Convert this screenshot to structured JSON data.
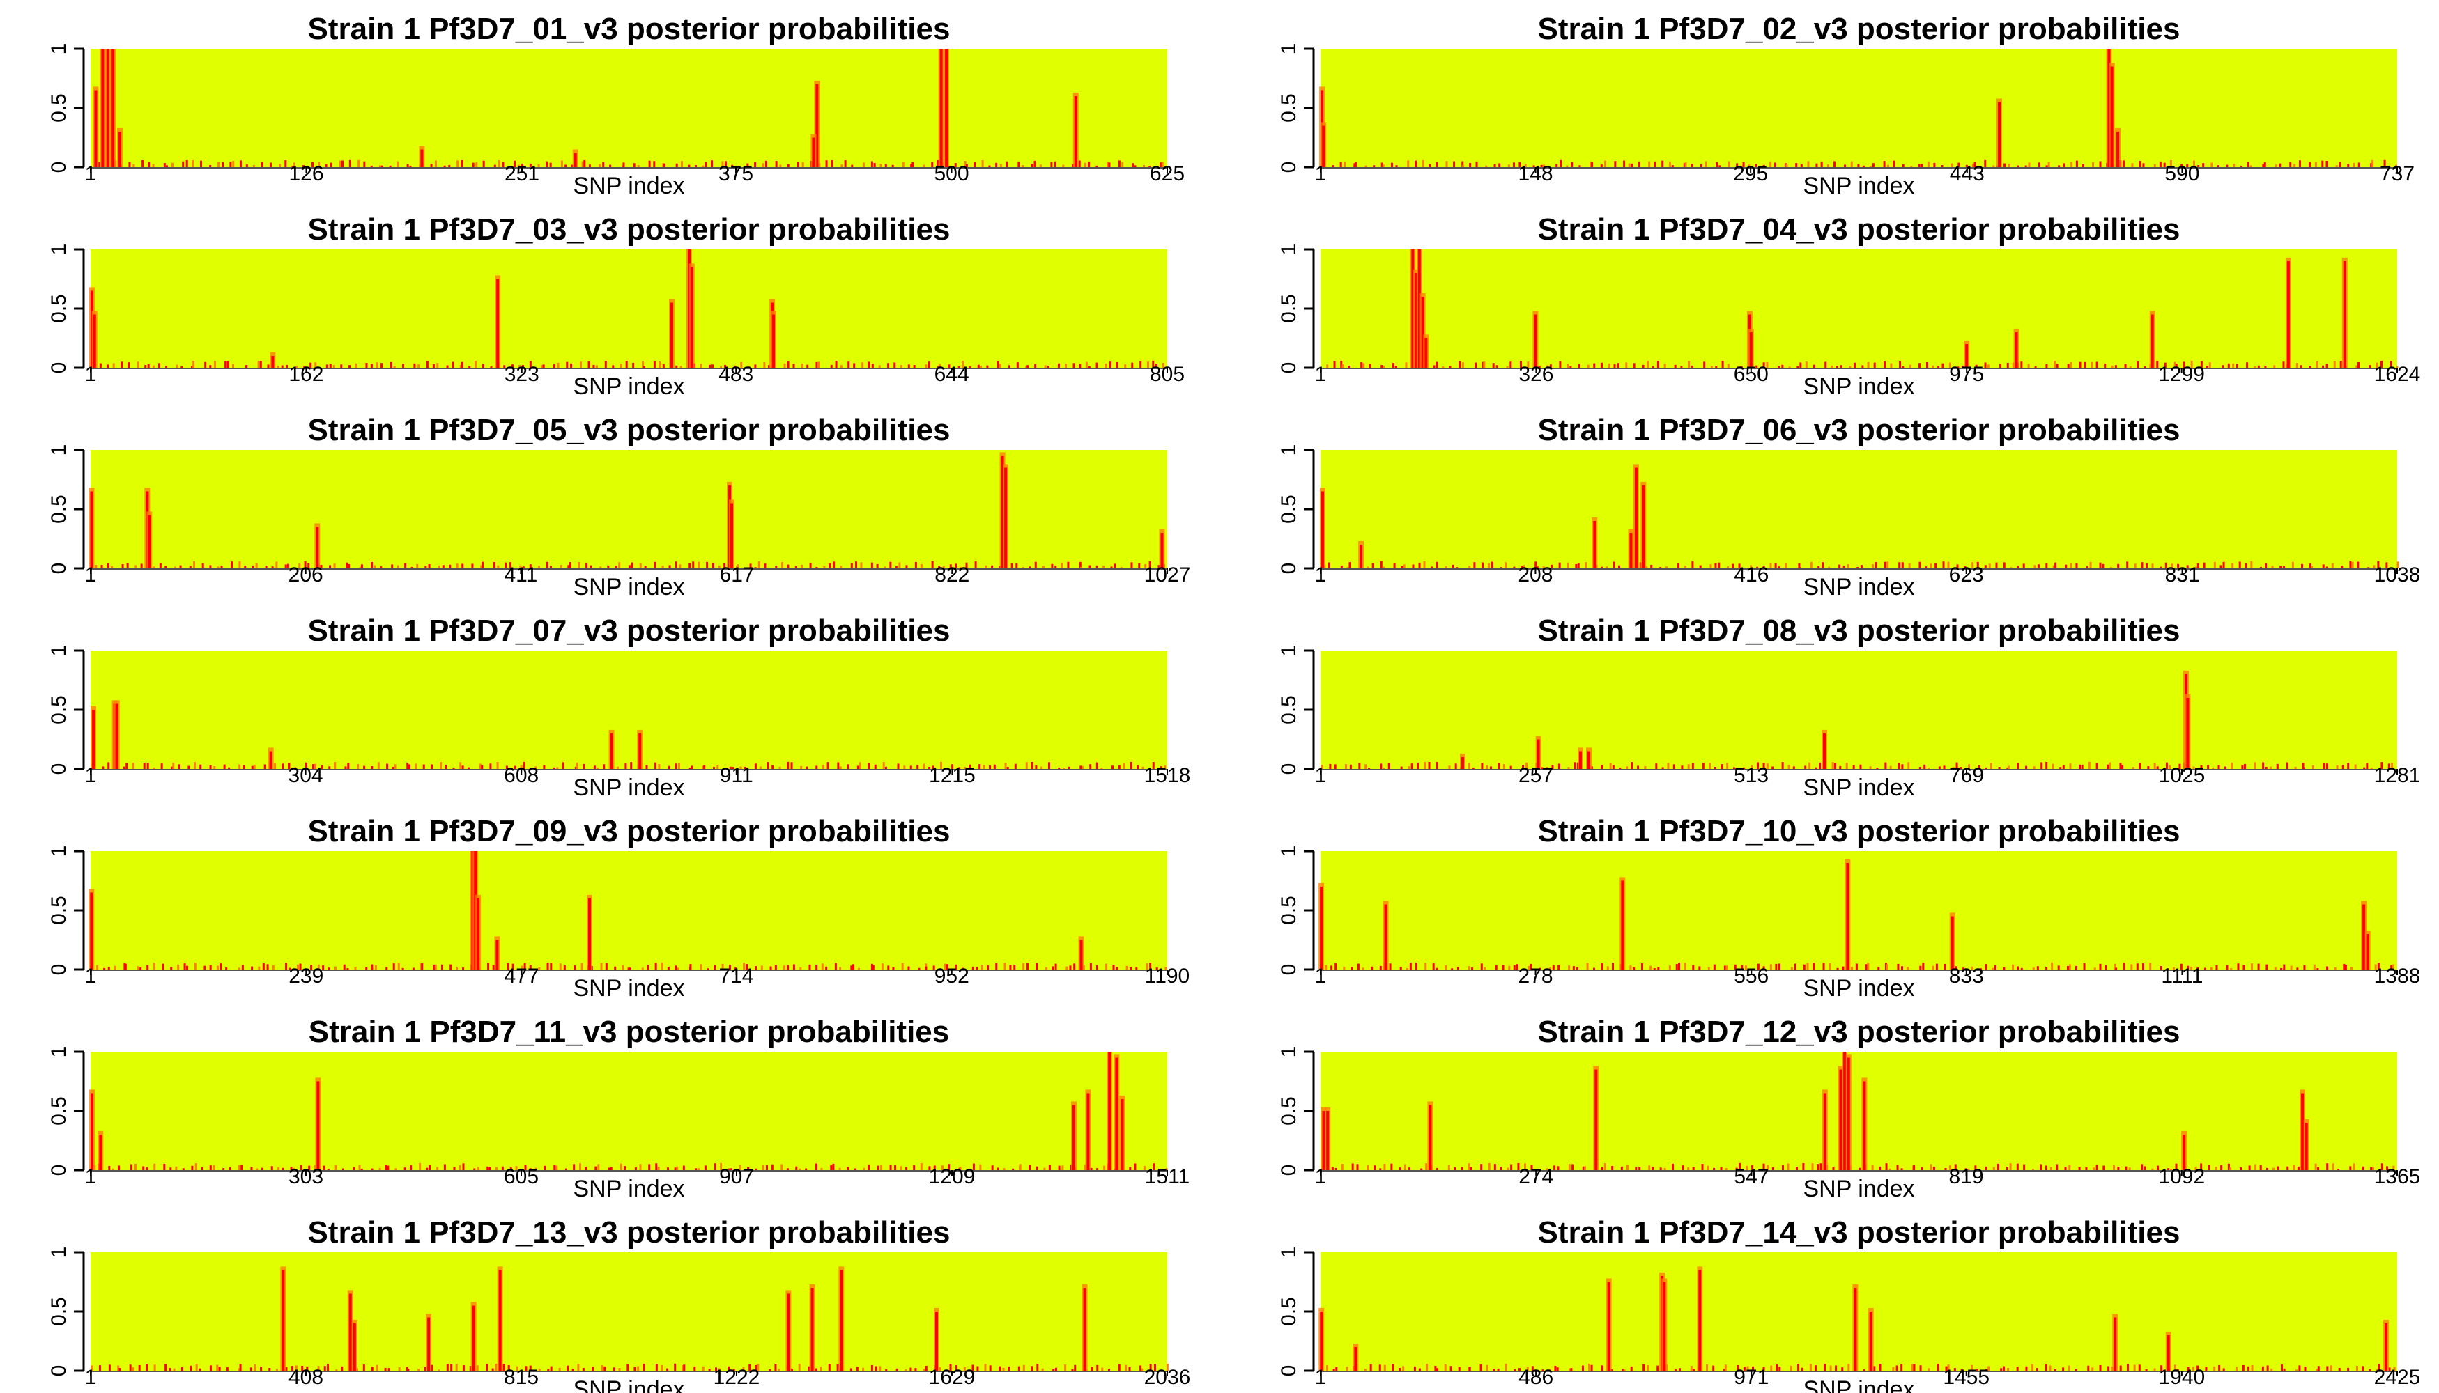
{
  "colors": {
    "background": "#e0ff00",
    "primary_mark": "#ff0000",
    "secondary_mark": "#ff7f00",
    "axis": "#000000"
  },
  "chart_data": [
    {
      "type": "area",
      "title": "Strain 1 Pf3D7_01_v3 posterior probabilities",
      "xlabel": "SNP index",
      "ylabel": "",
      "xlim": [
        1,
        625
      ],
      "ylim": [
        0,
        1
      ],
      "xticks": [
        "1",
        "126",
        "251",
        "375",
        "500",
        "625"
      ],
      "yticks": [
        "0",
        "0.5",
        "1"
      ],
      "peaks": [
        {
          "x": 4,
          "y": 0.65
        },
        {
          "x": 8,
          "y": 1.0
        },
        {
          "x": 11,
          "y": 1.0
        },
        {
          "x": 14,
          "y": 1.0
        },
        {
          "x": 18,
          "y": 0.3
        },
        {
          "x": 422,
          "y": 0.7
        },
        {
          "x": 420,
          "y": 0.25
        },
        {
          "x": 494,
          "y": 1.0
        },
        {
          "x": 497,
          "y": 1.0
        },
        {
          "x": 572,
          "y": 0.6
        },
        {
          "x": 193,
          "y": 0.15
        },
        {
          "x": 282,
          "y": 0.12
        }
      ]
    },
    {
      "type": "area",
      "title": "Strain 1 Pf3D7_02_v3 posterior probabilities",
      "xlabel": "SNP index",
      "ylabel": "",
      "xlim": [
        1,
        737
      ],
      "ylim": [
        0,
        1
      ],
      "xticks": [
        "1",
        "148",
        "295",
        "443",
        "590",
        "737"
      ],
      "yticks": [
        "0",
        "0.5",
        "1"
      ],
      "peaks": [
        {
          "x": 2,
          "y": 0.65
        },
        {
          "x": 3,
          "y": 0.35
        },
        {
          "x": 465,
          "y": 0.55
        },
        {
          "x": 540,
          "y": 1.0
        },
        {
          "x": 542,
          "y": 0.85
        },
        {
          "x": 546,
          "y": 0.3
        }
      ]
    },
    {
      "type": "area",
      "title": "Strain 1 Pf3D7_03_v3 posterior probabilities",
      "xlabel": "SNP index",
      "ylabel": "",
      "xlim": [
        1,
        805
      ],
      "ylim": [
        0,
        1
      ],
      "xticks": [
        "1",
        "162",
        "323",
        "483",
        "644",
        "805"
      ],
      "yticks": [
        "0",
        "0.5",
        "1"
      ],
      "peaks": [
        {
          "x": 2,
          "y": 0.65
        },
        {
          "x": 4,
          "y": 0.45
        },
        {
          "x": 305,
          "y": 0.75
        },
        {
          "x": 435,
          "y": 0.55
        },
        {
          "x": 448,
          "y": 1.0
        },
        {
          "x": 450,
          "y": 0.85
        },
        {
          "x": 510,
          "y": 0.55
        },
        {
          "x": 511,
          "y": 0.45
        },
        {
          "x": 137,
          "y": 0.1
        }
      ]
    },
    {
      "type": "area",
      "title": "Strain 1 Pf3D7_04_v3 posterior probabilities",
      "xlabel": "SNP index",
      "ylabel": "",
      "xlim": [
        1,
        1624
      ],
      "ylim": [
        0,
        1
      ],
      "xticks": [
        "1",
        "326",
        "650",
        "975",
        "1299",
        "1624"
      ],
      "yticks": [
        "0",
        "0.5",
        "1"
      ],
      "peaks": [
        {
          "x": 140,
          "y": 1.0
        },
        {
          "x": 145,
          "y": 0.8
        },
        {
          "x": 150,
          "y": 1.0
        },
        {
          "x": 155,
          "y": 0.6
        },
        {
          "x": 160,
          "y": 0.25
        },
        {
          "x": 325,
          "y": 0.45
        },
        {
          "x": 648,
          "y": 0.45
        },
        {
          "x": 650,
          "y": 0.3
        },
        {
          "x": 975,
          "y": 0.2
        },
        {
          "x": 1050,
          "y": 0.3
        },
        {
          "x": 1255,
          "y": 0.45
        },
        {
          "x": 1460,
          "y": 0.9
        },
        {
          "x": 1545,
          "y": 0.9
        }
      ]
    },
    {
      "type": "area",
      "title": "Strain 1 Pf3D7_05_v3 posterior probabilities",
      "xlabel": "SNP index",
      "ylabel": "",
      "xlim": [
        1,
        1027
      ],
      "ylim": [
        0,
        1
      ],
      "xticks": [
        "1",
        "206",
        "411",
        "617",
        "822",
        "1027"
      ],
      "yticks": [
        "0",
        "0.5",
        "1"
      ],
      "peaks": [
        {
          "x": 2,
          "y": 0.65
        },
        {
          "x": 55,
          "y": 0.65
        },
        {
          "x": 57,
          "y": 0.45
        },
        {
          "x": 217,
          "y": 0.35
        },
        {
          "x": 610,
          "y": 0.7
        },
        {
          "x": 612,
          "y": 0.55
        },
        {
          "x": 870,
          "y": 0.95
        },
        {
          "x": 873,
          "y": 0.85
        },
        {
          "x": 1022,
          "y": 0.3
        }
      ]
    },
    {
      "type": "area",
      "title": "Strain 1 Pf3D7_06_v3 posterior probabilities",
      "xlabel": "SNP index",
      "ylabel": "",
      "xlim": [
        1,
        1038
      ],
      "ylim": [
        0,
        1
      ],
      "xticks": [
        "1",
        "208",
        "416",
        "623",
        "831",
        "1038"
      ],
      "yticks": [
        "0",
        "0.5",
        "1"
      ],
      "peaks": [
        {
          "x": 3,
          "y": 0.65
        },
        {
          "x": 40,
          "y": 0.2
        },
        {
          "x": 265,
          "y": 0.4
        },
        {
          "x": 305,
          "y": 0.85
        },
        {
          "x": 312,
          "y": 0.7
        },
        {
          "x": 300,
          "y": 0.3
        }
      ]
    },
    {
      "type": "area",
      "title": "Strain 1 Pf3D7_07_v3 posterior probabilities",
      "xlabel": "SNP index",
      "ylabel": "",
      "xlim": [
        1,
        1518
      ],
      "ylim": [
        0,
        1
      ],
      "xticks": [
        "1",
        "304",
        "608",
        "911",
        "1215",
        "1518"
      ],
      "yticks": [
        "0",
        "0.5",
        "1"
      ],
      "peaks": [
        {
          "x": 5,
          "y": 0.5
        },
        {
          "x": 35,
          "y": 0.55
        },
        {
          "x": 38,
          "y": 0.55
        },
        {
          "x": 735,
          "y": 0.3
        },
        {
          "x": 775,
          "y": 0.3
        },
        {
          "x": 255,
          "y": 0.15
        }
      ]
    },
    {
      "type": "area",
      "title": "Strain 1 Pf3D7_08_v3 posterior probabilities",
      "xlabel": "SNP index",
      "ylabel": "",
      "xlim": [
        1,
        1281
      ],
      "ylim": [
        0,
        1
      ],
      "xticks": [
        "1",
        "257",
        "513",
        "769",
        "1025",
        "1281"
      ],
      "yticks": [
        "0",
        "0.5",
        "1"
      ],
      "peaks": [
        {
          "x": 170,
          "y": 0.1
        },
        {
          "x": 260,
          "y": 0.25
        },
        {
          "x": 310,
          "y": 0.15
        },
        {
          "x": 320,
          "y": 0.15
        },
        {
          "x": 600,
          "y": 0.3
        },
        {
          "x": 1030,
          "y": 0.8
        },
        {
          "x": 1032,
          "y": 0.6
        }
      ]
    },
    {
      "type": "area",
      "title": "Strain 1 Pf3D7_09_v3 posterior probabilities",
      "xlabel": "SNP index",
      "ylabel": "",
      "xlim": [
        1,
        1190
      ],
      "ylim": [
        0,
        1
      ],
      "xticks": [
        "1",
        "239",
        "477",
        "714",
        "952",
        "1190"
      ],
      "yticks": [
        "0",
        "0.5",
        "1"
      ],
      "peaks": [
        {
          "x": 2,
          "y": 0.65
        },
        {
          "x": 423,
          "y": 1.0
        },
        {
          "x": 426,
          "y": 1.0
        },
        {
          "x": 429,
          "y": 0.6
        },
        {
          "x": 450,
          "y": 0.25
        },
        {
          "x": 552,
          "y": 0.6
        },
        {
          "x": 1095,
          "y": 0.25
        }
      ]
    },
    {
      "type": "area",
      "title": "Strain 1 Pf3D7_10_v3 posterior probabilities",
      "xlabel": "SNP index",
      "ylabel": "",
      "xlim": [
        1,
        1388
      ],
      "ylim": [
        0,
        1
      ],
      "xticks": [
        "1",
        "278",
        "556",
        "833",
        "1111",
        "1388"
      ],
      "yticks": [
        "0",
        "0.5",
        "1"
      ],
      "peaks": [
        {
          "x": 2,
          "y": 0.7
        },
        {
          "x": 85,
          "y": 0.55
        },
        {
          "x": 390,
          "y": 0.75
        },
        {
          "x": 680,
          "y": 0.9
        },
        {
          "x": 815,
          "y": 0.45
        },
        {
          "x": 1345,
          "y": 0.55
        },
        {
          "x": 1350,
          "y": 0.3
        }
      ]
    },
    {
      "type": "area",
      "title": "Strain 1 Pf3D7_11_v3 posterior probabilities",
      "xlabel": "SNP index",
      "ylabel": "",
      "xlim": [
        1,
        1511
      ],
      "ylim": [
        0,
        1
      ],
      "xticks": [
        "1",
        "303",
        "605",
        "907",
        "1209",
        "1511"
      ],
      "yticks": [
        "0",
        "0.5",
        "1"
      ],
      "peaks": [
        {
          "x": 3,
          "y": 0.65
        },
        {
          "x": 15,
          "y": 0.3
        },
        {
          "x": 320,
          "y": 0.75
        },
        {
          "x": 1380,
          "y": 0.55
        },
        {
          "x": 1400,
          "y": 0.65
        },
        {
          "x": 1430,
          "y": 1.0
        },
        {
          "x": 1440,
          "y": 0.95
        },
        {
          "x": 1448,
          "y": 0.6
        }
      ]
    },
    {
      "type": "area",
      "title": "Strain 1 Pf3D7_12_v3 posterior probabilities",
      "xlabel": "SNP index",
      "ylabel": "",
      "xlim": [
        1,
        1365
      ],
      "ylim": [
        0,
        1
      ],
      "xticks": [
        "1",
        "274",
        "547",
        "819",
        "1092",
        "1365"
      ],
      "yticks": [
        "0",
        "0.5",
        "1"
      ],
      "peaks": [
        {
          "x": 5,
          "y": 0.5
        },
        {
          "x": 10,
          "y": 0.5
        },
        {
          "x": 140,
          "y": 0.55
        },
        {
          "x": 350,
          "y": 0.85
        },
        {
          "x": 640,
          "y": 0.65
        },
        {
          "x": 660,
          "y": 0.85
        },
        {
          "x": 665,
          "y": 1.0
        },
        {
          "x": 670,
          "y": 0.95
        },
        {
          "x": 690,
          "y": 0.75
        },
        {
          "x": 1095,
          "y": 0.3
        },
        {
          "x": 1245,
          "y": 0.65
        },
        {
          "x": 1250,
          "y": 0.4
        }
      ]
    },
    {
      "type": "area",
      "title": "Strain 1 Pf3D7_13_v3 posterior probabilities",
      "xlabel": "SNP index",
      "ylabel": "",
      "xlim": [
        1,
        2036
      ],
      "ylim": [
        0,
        1
      ],
      "xticks": [
        "1",
        "408",
        "815",
        "1222",
        "1629",
        "2036"
      ],
      "yticks": [
        "0",
        "0.5",
        "1"
      ],
      "peaks": [
        {
          "x": 365,
          "y": 0.85
        },
        {
          "x": 492,
          "y": 0.65
        },
        {
          "x": 500,
          "y": 0.4
        },
        {
          "x": 640,
          "y": 0.45
        },
        {
          "x": 725,
          "y": 0.55
        },
        {
          "x": 775,
          "y": 0.85
        },
        {
          "x": 1320,
          "y": 0.65
        },
        {
          "x": 1365,
          "y": 0.7
        },
        {
          "x": 1420,
          "y": 0.85
        },
        {
          "x": 1600,
          "y": 0.5
        },
        {
          "x": 1880,
          "y": 0.7
        }
      ]
    },
    {
      "type": "area",
      "title": "Strain 1 Pf3D7_14_v3 posterior probabilities",
      "xlabel": "SNP index",
      "ylabel": "",
      "xlim": [
        1,
        2425
      ],
      "ylim": [
        0,
        1
      ],
      "xticks": [
        "1",
        "486",
        "971",
        "1455",
        "1940",
        "2425"
      ],
      "yticks": [
        "0",
        "0.5",
        "1"
      ],
      "peaks": [
        {
          "x": 3,
          "y": 0.5
        },
        {
          "x": 80,
          "y": 0.2
        },
        {
          "x": 650,
          "y": 0.75
        },
        {
          "x": 770,
          "y": 0.8
        },
        {
          "x": 775,
          "y": 0.75
        },
        {
          "x": 855,
          "y": 0.85
        },
        {
          "x": 1205,
          "y": 0.7
        },
        {
          "x": 1240,
          "y": 0.5
        },
        {
          "x": 1790,
          "y": 0.45
        },
        {
          "x": 1910,
          "y": 0.3
        },
        {
          "x": 2400,
          "y": 0.4
        }
      ]
    }
  ]
}
